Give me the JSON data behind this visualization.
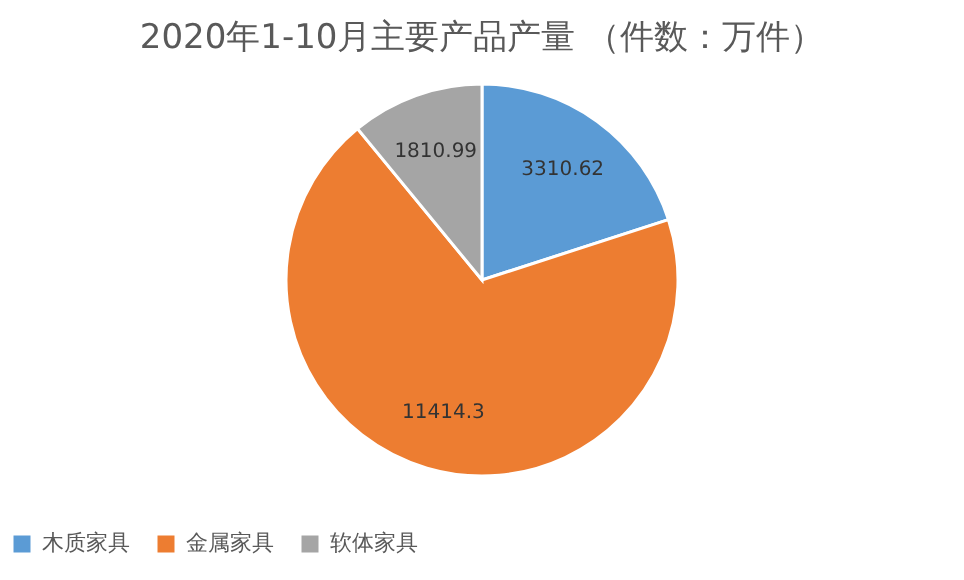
{
  "chart_data": {
    "type": "pie",
    "title": "2020年1-10月主要产品产量 （件数：万件）",
    "categories": [
      "木质家具",
      "金属家具",
      "软体家具"
    ],
    "values": [
      3310.62,
      11414.3,
      1810.99
    ],
    "colors": [
      "#5b9bd5",
      "#ed7d31",
      "#a5a5a5"
    ],
    "data_labels": true,
    "legend": "bottom"
  }
}
